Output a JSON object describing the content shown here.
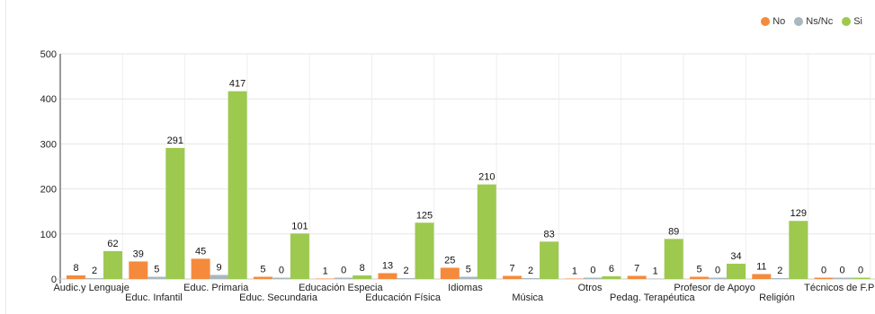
{
  "chart_data": {
    "type": "bar",
    "title": "",
    "xlabel": "",
    "ylabel": "",
    "ylim": [
      0,
      500
    ],
    "yticks": [
      0,
      100,
      200,
      300,
      400,
      500
    ],
    "grid": true,
    "legend_position": "top-right",
    "categories": [
      "Audic.y Lenguaje",
      "Educ. Infantil",
      "Educ. Primaria",
      "Educ. Secundaria",
      "Educación Especia",
      "Educación Física",
      "Idiomas",
      "Música",
      "Otros",
      "Pedag. Terapéutica",
      "Profesor de Apoyo",
      "Religión",
      "Técnicos de F.P"
    ],
    "series": [
      {
        "name": "No",
        "color": "#f58a3c",
        "values": [
          8,
          39,
          45,
          5,
          1,
          13,
          25,
          7,
          1,
          7,
          5,
          11,
          0
        ]
      },
      {
        "name": "Ns/Nc",
        "color": "#a9b8be",
        "values": [
          2,
          5,
          9,
          0,
          0,
          2,
          5,
          2,
          0,
          1,
          0,
          2,
          0
        ]
      },
      {
        "name": "Si",
        "color": "#9dc94f",
        "values": [
          62,
          291,
          417,
          101,
          8,
          125,
          210,
          83,
          6,
          89,
          34,
          129,
          0
        ]
      }
    ]
  }
}
